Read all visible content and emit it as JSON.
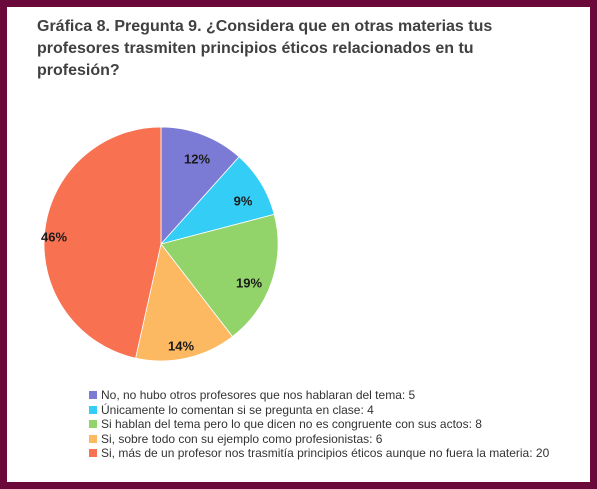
{
  "chart_data": {
    "type": "pie",
    "title_line1": "Gráfica 8. Pregunta 9. ¿Considera que en otras materias tus",
    "title_line2": "profesores trasmiten principios  éticos relacionados  en tu profesión?",
    "slices": [
      {
        "label": "No, no hubo otros profesores que nos hablaran del tema: 5",
        "value": 5,
        "pct_label": "12%",
        "color": "#7b7bd6"
      },
      {
        "label": "Únicamente lo comentan  si se pregunta  en clase: 4",
        "value": 4,
        "pct_label": "9%",
        "color": "#34cdf6"
      },
      {
        "label": "Si hablan del tema pero lo que dicen no es congruente  con sus actos: 8",
        "value": 8,
        "pct_label": "19%",
        "color": "#92d36a"
      },
      {
        "label": "Si, sobre todo con su ejemplo como profesionistas:  6",
        "value": 6,
        "pct_label": "14%",
        "color": "#fdb862"
      },
      {
        "label": "Si, más de un profesor nos trasmitía principios éticos aunque  no fuera la materia: 20",
        "value": 20,
        "pct_label": "46%",
        "color": "#f87150"
      }
    ],
    "legend_position": "bottom"
  }
}
